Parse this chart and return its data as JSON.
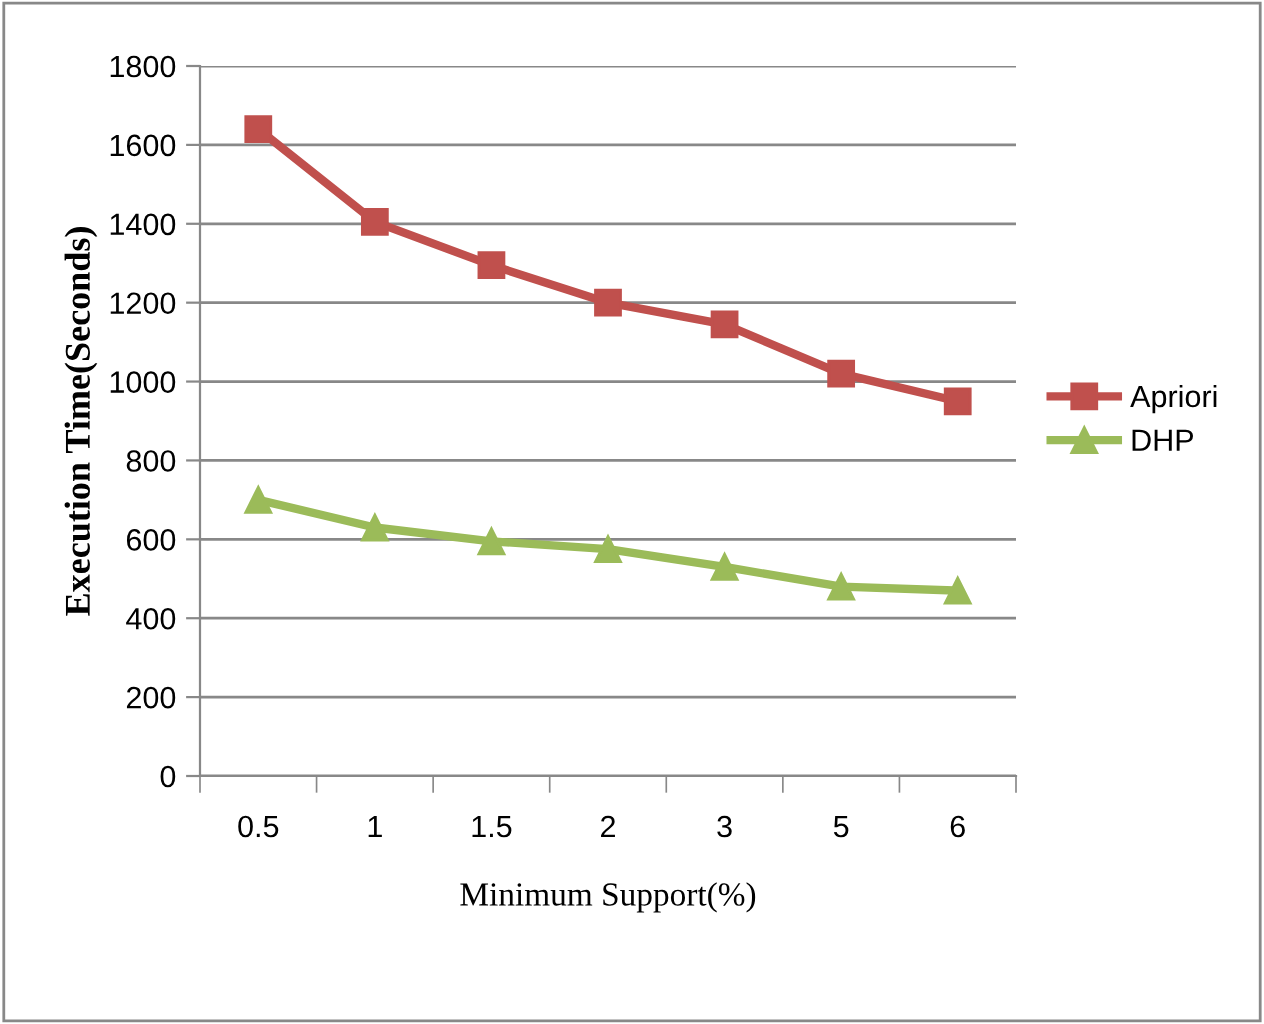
{
  "chart_data": {
    "type": "line",
    "xlabel": "Minimum Support(%)",
    "ylabel": "Execution Time(Seconds)",
    "categories": [
      "0.5",
      "1",
      "1.5",
      "2",
      "3",
      "5",
      "6"
    ],
    "series": [
      {
        "name": "Apriori",
        "color": "#c0504d",
        "marker": "square",
        "values": [
          1640,
          1405,
          1295,
          1200,
          1145,
          1020,
          950
        ]
      },
      {
        "name": "DHP",
        "color": "#9bbb59",
        "marker": "triangle",
        "values": [
          700,
          630,
          595,
          575,
          530,
          480,
          470
        ]
      }
    ],
    "ylim": [
      0,
      1800
    ],
    "yticks": [
      0,
      200,
      400,
      600,
      800,
      1000,
      1200,
      1400,
      1600,
      1800
    ],
    "grid": "y",
    "legend": "right"
  }
}
